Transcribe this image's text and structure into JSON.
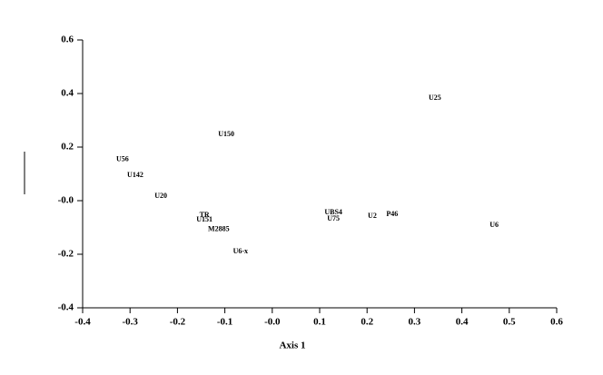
{
  "chart_data": {
    "type": "scatter",
    "xlabel": "Axis 1",
    "labels": [
      "U25",
      "U150",
      "U56",
      "U142",
      "U20",
      "TR",
      "U151",
      "M2885",
      "U6-x",
      "UBS4",
      "U75",
      "U2",
      "P46",
      "U6"
    ],
    "x": [
      0.343,
      -0.097,
      -0.316,
      -0.289,
      -0.235,
      -0.143,
      -0.143,
      -0.113,
      -0.067,
      0.129,
      0.129,
      0.211,
      0.253,
      0.468
    ],
    "values": [
      0.383,
      0.247,
      0.153,
      0.095,
      0.017,
      -0.054,
      -0.071,
      -0.108,
      -0.19,
      -0.044,
      -0.068,
      -0.058,
      -0.051,
      -0.092
    ],
    "xlim": [
      -0.4,
      0.6
    ],
    "ylim": [
      -0.4,
      0.6
    ],
    "xticks": [
      -0.4,
      -0.3,
      -0.2,
      -0.1,
      {
        "value": 0,
        "label": "-0.0"
      },
      0.1,
      0.2,
      0.3,
      0.4,
      0.5,
      0.6
    ],
    "yticks": [
      -0.4,
      -0.2,
      {
        "value": 0,
        "label": "-0.0"
      },
      0.2,
      0.4,
      0.6
    ]
  }
}
